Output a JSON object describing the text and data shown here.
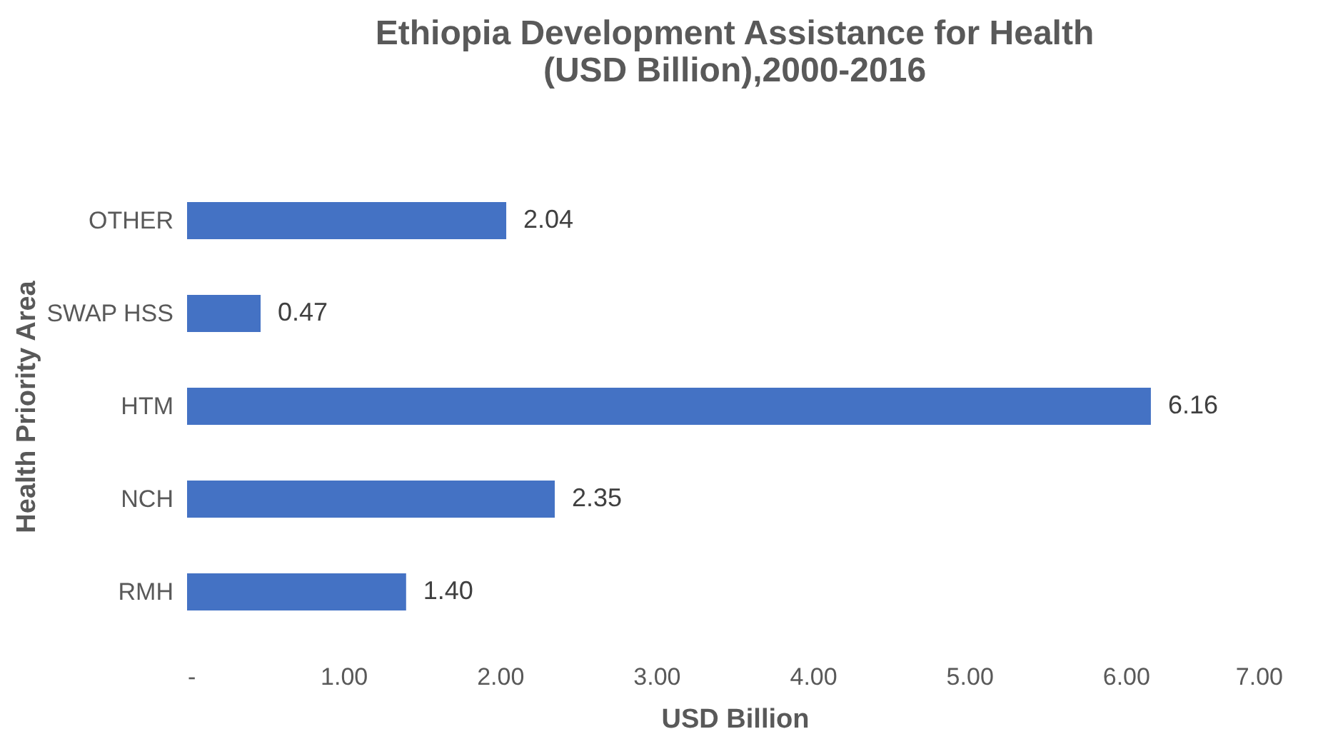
{
  "chart_data": {
    "type": "bar",
    "orientation": "horizontal",
    "title": [
      "Ethiopia Development Assistance for Health",
      "(USD Billion),2000-2016"
    ],
    "xlabel": "USD Billion",
    "ylabel": "Health Priority Area",
    "categories": [
      "OTHER",
      "SWAP HSS",
      "HTM",
      "NCH",
      "RMH"
    ],
    "values": [
      2.04,
      0.47,
      6.16,
      2.35,
      1.4
    ],
    "value_labels": [
      "2.04",
      "0.47",
      "6.16",
      "2.35",
      "1.40"
    ],
    "color": "#4472c4",
    "xlim": [
      0,
      7
    ],
    "xticks": [
      {
        "value": 0,
        "label": "-"
      },
      {
        "value": 1,
        "label": "1.00"
      },
      {
        "value": 2,
        "label": "2.00"
      },
      {
        "value": 3,
        "label": "3.00"
      },
      {
        "value": 4,
        "label": "4.00"
      },
      {
        "value": 5,
        "label": "5.00"
      },
      {
        "value": 6,
        "label": "6.00"
      },
      {
        "value": 7,
        "label": "7.00"
      }
    ],
    "grid": false
  }
}
